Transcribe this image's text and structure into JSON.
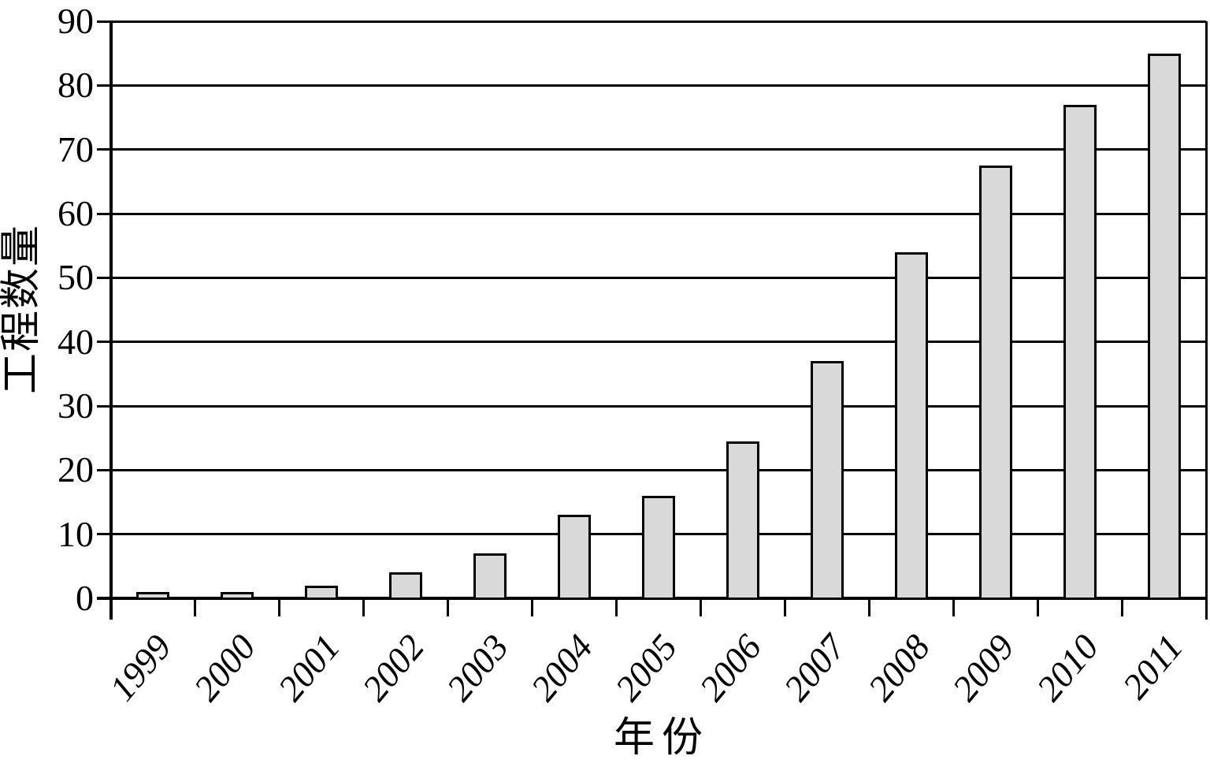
{
  "chart_data": {
    "type": "bar",
    "title": "",
    "categories": [
      "1999",
      "2000",
      "2001",
      "2002",
      "2003",
      "2004",
      "2005",
      "2006",
      "2007",
      "2008",
      "2009",
      "2010",
      "2011"
    ],
    "values": [
      1,
      1,
      2,
      4,
      7,
      13,
      16,
      24.5,
      37,
      54,
      67.5,
      77,
      85
    ],
    "xlabel": "年份",
    "ylabel": "工程数量",
    "ylim": [
      0,
      90
    ],
    "ytick_step": 10,
    "yticks": [
      0,
      10,
      20,
      30,
      40,
      50,
      60,
      70,
      80,
      90
    ],
    "grid": "horizontal-only",
    "legend": "none",
    "series_count": 1,
    "bar_fill": "#d9d9d9",
    "bar_border": "#000000",
    "axis_color": "#000000",
    "background": "#ffffff"
  }
}
